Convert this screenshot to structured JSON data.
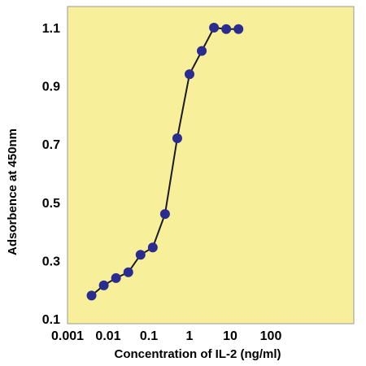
{
  "chart_data": {
    "type": "line",
    "xlabel": "Concentration of IL-2 (ng/ml)",
    "ylabel": "Adsorbence at 450nm",
    "x_scale": "log",
    "xlim": [
      0.001,
      1000
    ],
    "ylim": [
      0.1,
      1.2
    ],
    "grid": false,
    "x_ticks": [
      "0.001",
      "0.01",
      "0.1",
      "1",
      "10",
      "100"
    ],
    "y_ticks": [
      "0.1",
      "0.3",
      "0.5",
      "0.7",
      "0.9",
      "1.1"
    ],
    "colors": {
      "plot_background": "#f7ef9a",
      "marker": "#2a2d8f",
      "line": "#1a1a1a"
    },
    "series": [
      {
        "x": [
          0.0039,
          0.0078,
          0.0156,
          0.0313,
          0.0625,
          0.125,
          0.25,
          0.5,
          1.0,
          2.0,
          4.0,
          8.0,
          16.0
        ],
        "y": [
          0.18,
          0.215,
          0.24,
          0.26,
          0.32,
          0.345,
          0.46,
          0.72,
          0.94,
          1.02,
          1.1,
          1.095,
          1.095
        ]
      }
    ]
  }
}
